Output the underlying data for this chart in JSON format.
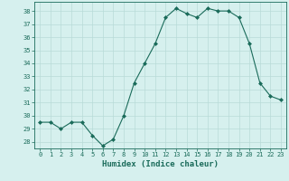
{
  "x": [
    0,
    1,
    2,
    3,
    4,
    5,
    6,
    7,
    8,
    9,
    10,
    11,
    12,
    13,
    14,
    15,
    16,
    17,
    18,
    19,
    20,
    21,
    22,
    23
  ],
  "y": [
    29.5,
    29.5,
    29.0,
    29.5,
    29.5,
    28.5,
    27.7,
    28.2,
    30.0,
    32.5,
    34.0,
    35.5,
    37.5,
    38.2,
    37.8,
    37.5,
    38.2,
    38.0,
    38.0,
    37.5,
    35.5,
    32.5,
    31.5,
    31.2
  ],
  "line_color": "#1a6b5a",
  "marker": "D",
  "marker_size": 2,
  "bg_color": "#d6f0ee",
  "grid_color": "#b8dbd8",
  "xlabel": "Humidex (Indice chaleur)",
  "ylim": [
    27.5,
    38.7
  ],
  "xlim": [
    -0.5,
    23.5
  ],
  "yticks": [
    28,
    29,
    30,
    31,
    32,
    33,
    34,
    35,
    36,
    37,
    38
  ],
  "xticks": [
    0,
    1,
    2,
    3,
    4,
    5,
    6,
    7,
    8,
    9,
    10,
    11,
    12,
    13,
    14,
    15,
    16,
    17,
    18,
    19,
    20,
    21,
    22,
    23
  ],
  "tick_color": "#1a6b5a",
  "label_color": "#1a6b5a",
  "spine_color": "#1a6b5a"
}
